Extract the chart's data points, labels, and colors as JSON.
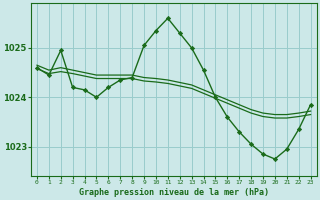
{
  "title": "Graphe pression niveau de la mer (hPa)",
  "bg_color": "#cce8e8",
  "plot_bg_color": "#cce8e8",
  "grid_color": "#99cccc",
  "line_color": "#1a6b1a",
  "marker_color": "#1a6b1a",
  "xlim": [
    -0.5,
    23.5
  ],
  "ylim": [
    1022.4,
    1025.9
  ],
  "yticks": [
    1023,
    1024,
    1025
  ],
  "xticks": [
    0,
    1,
    2,
    3,
    4,
    5,
    6,
    7,
    8,
    9,
    10,
    11,
    12,
    13,
    14,
    15,
    16,
    17,
    18,
    19,
    20,
    21,
    22,
    23
  ],
  "series1_x": [
    0,
    1,
    2,
    3,
    4,
    5,
    6,
    7,
    8,
    9,
    10,
    11,
    12,
    13,
    14,
    15,
    16,
    17,
    18,
    19,
    20,
    21,
    22,
    23
  ],
  "series1_y": [
    1024.6,
    1024.45,
    1024.95,
    1024.2,
    1024.15,
    1024.0,
    1024.2,
    1024.35,
    1024.4,
    1025.05,
    1025.35,
    1025.6,
    1025.3,
    1025.0,
    1024.55,
    1024.0,
    1023.6,
    1023.3,
    1023.05,
    1022.85,
    1022.75,
    1022.95,
    1023.35,
    1023.85
  ],
  "series2_x": [
    0,
    1,
    2,
    3,
    4,
    5,
    6,
    7,
    8,
    9,
    10,
    11,
    12,
    13,
    14,
    15,
    16,
    17,
    18,
    19,
    20,
    21,
    22,
    23
  ],
  "series2_y": [
    1024.65,
    1024.55,
    1024.6,
    1024.55,
    1024.5,
    1024.45,
    1024.45,
    1024.45,
    1024.45,
    1024.4,
    1024.38,
    1024.35,
    1024.3,
    1024.25,
    1024.15,
    1024.05,
    1023.95,
    1023.85,
    1023.75,
    1023.68,
    1023.65,
    1023.65,
    1023.68,
    1023.72
  ],
  "series3_x": [
    0,
    1,
    2,
    3,
    4,
    5,
    6,
    7,
    8,
    9,
    10,
    11,
    12,
    13,
    14,
    15,
    16,
    17,
    18,
    19,
    20,
    21,
    22,
    23
  ],
  "series3_y": [
    1024.58,
    1024.48,
    1024.52,
    1024.48,
    1024.43,
    1024.38,
    1024.38,
    1024.38,
    1024.38,
    1024.33,
    1024.31,
    1024.28,
    1024.23,
    1024.18,
    1024.08,
    1023.98,
    1023.88,
    1023.78,
    1023.68,
    1023.61,
    1023.58,
    1023.58,
    1023.61,
    1023.65
  ]
}
